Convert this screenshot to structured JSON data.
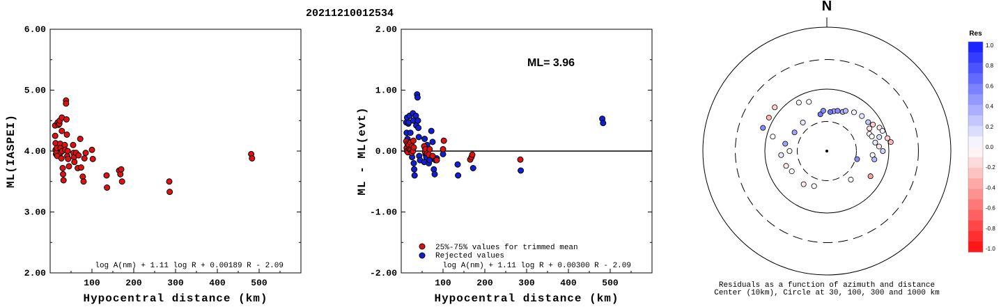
{
  "event_id": "20211210012534",
  "colors": {
    "red": "#dd1111",
    "blue": "#1020d0",
    "axis": "#000000"
  },
  "chart_data": [
    {
      "type": "scatter",
      "xlabel": "Hypocentral distance (km)",
      "ylabel": "ML(IASPEI)",
      "xlim": [
        0,
        600
      ],
      "ylim": [
        2.0,
        6.0
      ],
      "xticks": [
        "100",
        "200",
        "300",
        "400",
        "500"
      ],
      "yticks": [
        "2.00",
        "3.00",
        "4.00",
        "5.00",
        "6.00"
      ],
      "formula": "log A(nm) + 1.11 log R + 0.00189 R - 2.09",
      "series": [
        {
          "color": "red",
          "points": [
            [
              12,
              4.42
            ],
            [
              12,
              4.25
            ],
            [
              13,
              4.13
            ],
            [
              13,
              4.02
            ],
            [
              14,
              3.95
            ],
            [
              15,
              3.97
            ],
            [
              16,
              4.05
            ],
            [
              17,
              3.92
            ],
            [
              18,
              4.47
            ],
            [
              20,
              4.43
            ],
            [
              22,
              4.45
            ],
            [
              23,
              4.5
            ],
            [
              24,
              4.12
            ],
            [
              25,
              4.05
            ],
            [
              26,
              3.98
            ],
            [
              27,
              3.88
            ],
            [
              28,
              4.55
            ],
            [
              28,
              4.33
            ],
            [
              29,
              4.0
            ],
            [
              30,
              3.72
            ],
            [
              31,
              3.62
            ],
            [
              32,
              3.52
            ],
            [
              35,
              4.1
            ],
            [
              36,
              4.02
            ],
            [
              38,
              4.83
            ],
            [
              38,
              4.78
            ],
            [
              39,
              4.52
            ],
            [
              40,
              4.27
            ],
            [
              41,
              3.92
            ],
            [
              42,
              4.0
            ],
            [
              43,
              3.87
            ],
            [
              45,
              3.75
            ],
            [
              55,
              4.1
            ],
            [
              56,
              3.97
            ],
            [
              57,
              3.9
            ],
            [
              58,
              3.82
            ],
            [
              62,
              3.97
            ],
            [
              66,
              3.72
            ],
            [
              68,
              3.93
            ],
            [
              72,
              4.2
            ],
            [
              74,
              3.73
            ],
            [
              78,
              3.58
            ],
            [
              80,
              3.5
            ],
            [
              82,
              3.88
            ],
            [
              85,
              3.97
            ],
            [
              100,
              4.02
            ],
            [
              102,
              3.87
            ],
            [
              135,
              3.6
            ],
            [
              136,
              3.4
            ],
            [
              165,
              3.68
            ],
            [
              168,
              3.62
            ],
            [
              170,
              3.7
            ],
            [
              172,
              3.5
            ],
            [
              285,
              3.5
            ],
            [
              286,
              3.33
            ],
            [
              481,
              3.95
            ],
            [
              483,
              3.88
            ]
          ]
        }
      ]
    },
    {
      "type": "scatter",
      "xlabel": "Hypocentral distance (km)",
      "ylabel": "ML - ML(evt)",
      "xlim": [
        0,
        600
      ],
      "ylim": [
        -2.0,
        2.0
      ],
      "xticks": [
        "100",
        "200",
        "300",
        "400",
        "500"
      ],
      "yticks": [
        "-2.00",
        "-1.00",
        "0.00",
        "1.00",
        "2.00"
      ],
      "ml_label": "ML= 3.96",
      "formula": "log A(nm) + 1.11 log R + 0.00300 R - 2.09",
      "legend": [
        "25%-75% values for trimmed mean",
        "Rejected values"
      ],
      "series": [
        {
          "color": "red",
          "points": [
            [
              12,
              0.16
            ],
            [
              13,
              0.05
            ],
            [
              14,
              0.0
            ],
            [
              15,
              0.12
            ],
            [
              16,
              -0.02
            ],
            [
              18,
              0.1
            ],
            [
              20,
              0.03
            ],
            [
              22,
              0.14
            ],
            [
              23,
              0.02
            ],
            [
              25,
              -0.03
            ],
            [
              26,
              0.08
            ],
            [
              28,
              0.0
            ],
            [
              29,
              0.17
            ],
            [
              30,
              0.06
            ],
            [
              55,
              0.08
            ],
            [
              57,
              -0.01
            ],
            [
              58,
              0.03
            ],
            [
              62,
              -0.04
            ],
            [
              66,
              -0.06
            ],
            [
              68,
              0.03
            ],
            [
              75,
              -0.08
            ],
            [
              85,
              -0.15
            ],
            [
              100,
              0.03
            ],
            [
              102,
              0.17
            ],
            [
              165,
              -0.14
            ],
            [
              168,
              -0.1
            ],
            [
              170,
              -0.06
            ],
            [
              285,
              -0.14
            ]
          ]
        },
        {
          "color": "blue",
          "points": [
            [
              12,
              0.47
            ],
            [
              13,
              0.3
            ],
            [
              14,
              0.55
            ],
            [
              15,
              0.2
            ],
            [
              17,
              0.45
            ],
            [
              18,
              0.47
            ],
            [
              20,
              0.58
            ],
            [
              22,
              0.3
            ],
            [
              24,
              0.1
            ],
            [
              26,
              -0.1
            ],
            [
              28,
              0.62
            ],
            [
              29,
              0.5
            ],
            [
              30,
              -0.2
            ],
            [
              31,
              -0.3
            ],
            [
              32,
              -0.4
            ],
            [
              35,
              0.58
            ],
            [
              36,
              0.42
            ],
            [
              38,
              0.93
            ],
            [
              39,
              0.88
            ],
            [
              40,
              0.5
            ],
            [
              41,
              0.38
            ],
            [
              42,
              0.23
            ],
            [
              43,
              -0.08
            ],
            [
              45,
              -0.15
            ],
            [
              55,
              -0.18
            ],
            [
              56,
              0.2
            ],
            [
              57,
              0.05
            ],
            [
              58,
              -0.05
            ],
            [
              60,
              -0.1
            ],
            [
              62,
              0.1
            ],
            [
              66,
              -0.2
            ],
            [
              68,
              -0.15
            ],
            [
              72,
              0.33
            ],
            [
              75,
              0.15
            ],
            [
              78,
              -0.3
            ],
            [
              80,
              -0.38
            ],
            [
              82,
              -0.15
            ],
            [
              85,
              -0.12
            ],
            [
              100,
              -0.05
            ],
            [
              135,
              -0.22
            ],
            [
              136,
              -0.4
            ],
            [
              172,
              -0.28
            ],
            [
              286,
              -0.32
            ],
            [
              481,
              0.53
            ],
            [
              483,
              0.46
            ]
          ]
        }
      ]
    },
    {
      "type": "polar-scatter",
      "north_label": "N",
      "caption": [
        "Residuals as a function of azimuth and distance",
        "Center (10km), Circle at 30, 100, 300 and 1000 km"
      ],
      "colorbar_title": "Res",
      "colorbar_ticks": [
        "1.0",
        "0.8",
        "0.6",
        "0.4",
        "0.2",
        "0.0",
        "-0.2",
        "-0.4",
        "-0.6",
        "-0.8",
        "-1.0"
      ],
      "points": [
        {
          "az": 10,
          "dist": 45,
          "res": 0.4
        },
        {
          "az": 15,
          "dist": 47,
          "res": 0.5
        },
        {
          "az": 22,
          "dist": 48,
          "res": 0.35
        },
        {
          "az": 25,
          "dist": 52,
          "res": 0.3
        },
        {
          "az": 35,
          "dist": 58,
          "res": 0.05
        },
        {
          "az": 45,
          "dist": 63,
          "res": 0.1
        },
        {
          "az": 55,
          "dist": 65,
          "res": 0.25
        },
        {
          "az": 60,
          "dist": 72,
          "res": -0.2
        },
        {
          "az": 62,
          "dist": 60,
          "res": -0.1
        },
        {
          "az": 66,
          "dist": 85,
          "res": -0.1
        },
        {
          "az": 68,
          "dist": 55,
          "res": -0.05
        },
        {
          "az": 70,
          "dist": 90,
          "res": 0.05
        },
        {
          "az": 72,
          "dist": 58,
          "res": 0.0
        },
        {
          "az": 75,
          "dist": 75,
          "res": 0.15
        },
        {
          "az": 78,
          "dist": 100,
          "res": -0.2
        },
        {
          "az": 80,
          "dist": 62,
          "res": 0.1
        },
        {
          "az": 82,
          "dist": 110,
          "res": -0.3
        },
        {
          "az": 85,
          "dist": 70,
          "res": -0.1
        },
        {
          "az": 90,
          "dist": 80,
          "res": 0.2
        },
        {
          "az": 95,
          "dist": 55,
          "res": 0.0
        },
        {
          "az": 100,
          "dist": 60,
          "res": 0.3
        },
        {
          "az": 105,
          "dist": 32,
          "res": 0.5
        },
        {
          "az": 120,
          "dist": 65,
          "res": -0.4
        },
        {
          "az": 140,
          "dist": 40,
          "res": 0.0
        },
        {
          "az": 200,
          "dist": 40,
          "res": 0.0
        },
        {
          "az": 215,
          "dist": 45,
          "res": -0.1
        },
        {
          "az": 240,
          "dist": 45,
          "res": 0.0
        },
        {
          "az": 250,
          "dist": 50,
          "res": -0.1
        },
        {
          "az": 265,
          "dist": 55,
          "res": 0.1
        },
        {
          "az": 280,
          "dist": 48,
          "res": 0.4
        },
        {
          "az": 285,
          "dist": 80,
          "res": 0.0
        },
        {
          "az": 290,
          "dist": 125,
          "res": 0.5
        },
        {
          "az": 300,
          "dist": 120,
          "res": -0.3
        },
        {
          "az": 310,
          "dist": 125,
          "res": -0.2
        },
        {
          "az": 320,
          "dist": 40,
          "res": 0.1
        },
        {
          "az": 330,
          "dist": 80,
          "res": 0.0
        },
        {
          "az": 340,
          "dist": 70,
          "res": 0.0
        },
        {
          "az": 350,
          "dist": 40,
          "res": 0.6
        },
        {
          "az": 355,
          "dist": 45,
          "res": 0.5
        },
        {
          "az": 5,
          "dist": 43,
          "res": 0.6
        },
        {
          "az": 300,
          "dist": 40,
          "res": 0.4
        },
        {
          "az": 270,
          "dist": 40,
          "res": 0.0
        }
      ]
    }
  ]
}
